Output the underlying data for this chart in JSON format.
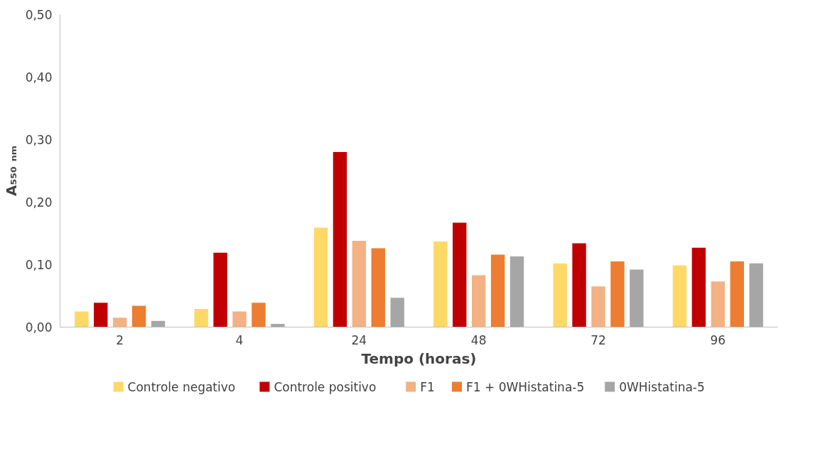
{
  "chart_data": {
    "type": "bar",
    "xlabel": "Tempo (horas)",
    "ylabel": "A₅₅₀ ₙₘ",
    "categories": [
      "2",
      "4",
      "24",
      "48",
      "72",
      "96"
    ],
    "series": [
      {
        "name": "Controle negativo",
        "color": "#ffd966",
        "values": [
          0.025,
          0.029,
          0.159,
          0.137,
          0.102,
          0.099
        ]
      },
      {
        "name": "Controle positivo",
        "color": "#c00000",
        "values": [
          0.039,
          0.119,
          0.28,
          0.167,
          0.134,
          0.127
        ]
      },
      {
        "name": "F1",
        "color": "#f4b183",
        "values": [
          0.015,
          0.025,
          0.138,
          0.083,
          0.065,
          0.073
        ]
      },
      {
        "name": "F1 + 0WHistatina-5",
        "color": "#ed7d31",
        "values": [
          0.034,
          0.039,
          0.126,
          0.116,
          0.105,
          0.105
        ]
      },
      {
        "name": "0WHistatina-5",
        "color": "#a6a6a6",
        "values": [
          0.01,
          0.005,
          0.047,
          0.113,
          0.092,
          0.102
        ]
      }
    ],
    "ylim": [
      0,
      0.5
    ],
    "yticks": [
      {
        "value": 0,
        "label": "0,00"
      },
      {
        "value": 0.1,
        "label": "0,10"
      },
      {
        "value": 0.2,
        "label": "0,20"
      },
      {
        "value": 0.3,
        "label": "0,30"
      },
      {
        "value": 0.4,
        "label": "0,40"
      },
      {
        "value": 0.5,
        "label": "0,50"
      }
    ],
    "grid": false,
    "legend": "bottom"
  }
}
